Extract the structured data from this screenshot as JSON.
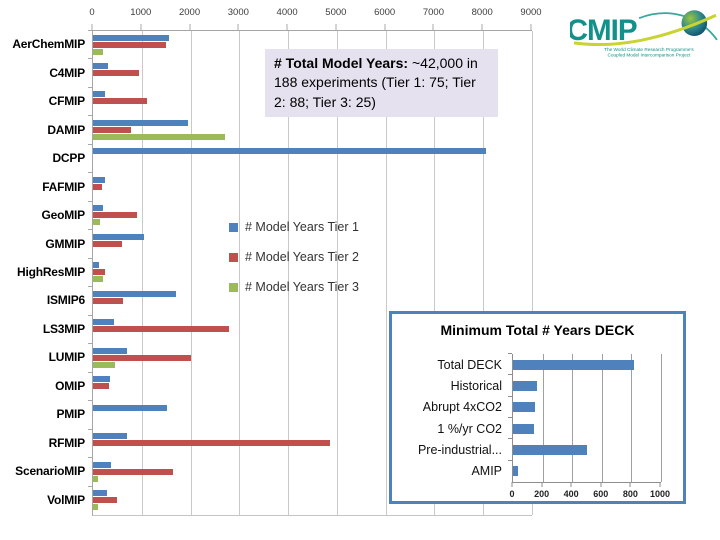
{
  "logo": {
    "brand": "CMIP",
    "line1": "The World Climate Research Programme's",
    "line2": "Coupled Model Intercomparison Project",
    "teal": "#12918B",
    "swoosh_yellow": "#C9D331",
    "swoosh_teal": "#37A89E"
  },
  "annotation": {
    "bold": "# Total Model Years:",
    "rest": " ~42,000 in 188 experiments  (Tier 1: 75; Tier 2: 88; Tier 3: 25)",
    "background": "#E6E1EE"
  },
  "colors": {
    "tier1": "#4F81BD",
    "tier2": "#C0504D",
    "tier3": "#9BBB59",
    "gridline": "#C9C9C9",
    "inset_border": "#4F81BD"
  },
  "chart_data": [
    {
      "type": "bar",
      "orientation": "horizontal",
      "title": "",
      "categories": [
        "AerChemMIP",
        "C4MIP",
        "CFMIP",
        "DAMIP",
        "DCPP",
        "FAFMIP",
        "GeoMIP",
        "GMMIP",
        "HighResMIP",
        "ISMIP6",
        "LS3MIP",
        "LUMIP",
        "OMIP",
        "PMIP",
        "RFMIP",
        "ScenarioMIP",
        "VolMIP"
      ],
      "series": [
        {
          "name": "# Model Years Tier 1",
          "color": "#4F81BD",
          "values": [
            1550,
            300,
            250,
            1950,
            8050,
            250,
            200,
            1050,
            120,
            1700,
            430,
            700,
            340,
            1520,
            700,
            360,
            280
          ]
        },
        {
          "name": "# Model Years Tier 2",
          "color": "#C0504D",
          "values": [
            1500,
            950,
            1100,
            780,
            0,
            180,
            900,
            600,
            250,
            620,
            2780,
            2000,
            330,
            0,
            4850,
            1650,
            500
          ]
        },
        {
          "name": "# Model Years Tier 3",
          "color": "#9BBB59",
          "values": [
            200,
            0,
            0,
            2700,
            0,
            0,
            150,
            0,
            200,
            0,
            0,
            460,
            0,
            0,
            0,
            110,
            110
          ]
        }
      ],
      "xlim": [
        0,
        9000
      ],
      "xticks": [
        0,
        1000,
        2000,
        3000,
        4000,
        5000,
        6000,
        7000,
        8000,
        9000
      ],
      "xlabel": "",
      "ylabel": "",
      "grid": true,
      "legend_position": "center-right"
    },
    {
      "type": "bar",
      "orientation": "horizontal",
      "title": "Minimum Total # Years DECK",
      "categories": [
        "Total DECK",
        "Historical",
        "Abrupt 4xCO2",
        "1 %/yr CO2",
        "Pre-industrial...",
        "AMIP"
      ],
      "values": [
        820,
        165,
        150,
        140,
        500,
        36
      ],
      "bar_color": "#4F81BD",
      "xlim": [
        0,
        1000
      ],
      "xticks": [
        0,
        200,
        400,
        600,
        800,
        1000
      ],
      "grid": true
    }
  ]
}
